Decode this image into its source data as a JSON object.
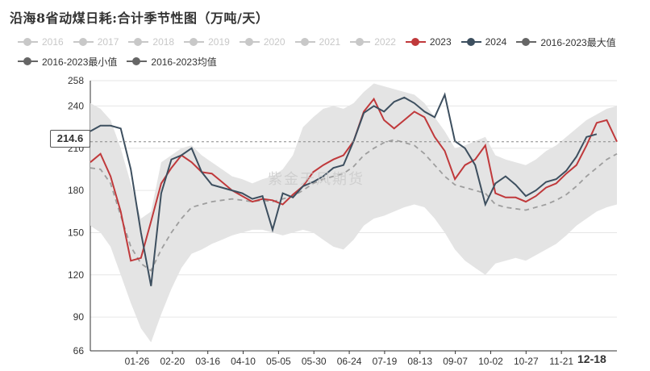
{
  "title": "沿海8省动煤日耗:合计季节性图（万吨/天）",
  "watermark": "紫金天风期货",
  "tooltip_value": "214.6",
  "hover_x_label": "12-18",
  "legend": [
    {
      "label": "2016",
      "active": false,
      "color": "#c8c8c8"
    },
    {
      "label": "2017",
      "active": false,
      "color": "#c8c8c8"
    },
    {
      "label": "2018",
      "active": false,
      "color": "#c8c8c8"
    },
    {
      "label": "2019",
      "active": false,
      "color": "#c8c8c8"
    },
    {
      "label": "2020",
      "active": false,
      "color": "#c8c8c8"
    },
    {
      "label": "2021",
      "active": false,
      "color": "#c8c8c8"
    },
    {
      "label": "2022",
      "active": false,
      "color": "#c8c8c8"
    },
    {
      "label": "2023",
      "active": true,
      "color": "#c0393b"
    },
    {
      "label": "2024",
      "active": true,
      "color": "#3d4f5f"
    },
    {
      "label": "2016-2023最大值",
      "active": true,
      "color": "#666666"
    },
    {
      "label": "2016-2023最小值",
      "active": true,
      "color": "#666666"
    },
    {
      "label": "2016-2023均值",
      "active": true,
      "color": "#666666"
    }
  ],
  "chart_data": {
    "type": "line",
    "title": "沿海8省动煤日耗:合计季节性图（万吨/天）",
    "x_ticks": [
      "01-26",
      "02-20",
      "03-16",
      "04-10",
      "05-05",
      "05-30",
      "06-24",
      "07-19",
      "08-13",
      "09-07",
      "10-02",
      "10-27",
      "11-21",
      "12-18"
    ],
    "y_ticks": [
      66,
      90,
      120,
      150,
      180,
      210,
      240,
      258
    ],
    "ylim": [
      66,
      258
    ],
    "grid": "horizontal",
    "x": [
      "01-01",
      "01-08",
      "01-15",
      "01-22",
      "01-29",
      "02-05",
      "02-12",
      "02-19",
      "02-26",
      "03-05",
      "03-12",
      "03-19",
      "03-26",
      "04-02",
      "04-09",
      "04-16",
      "04-23",
      "04-30",
      "05-07",
      "05-14",
      "05-21",
      "05-28",
      "06-04",
      "06-11",
      "06-18",
      "06-25",
      "07-02",
      "07-09",
      "07-16",
      "07-23",
      "07-30",
      "08-06",
      "08-13",
      "08-20",
      "08-27",
      "09-03",
      "09-10",
      "09-17",
      "09-24",
      "10-01",
      "10-08",
      "10-15",
      "10-22",
      "10-29",
      "11-05",
      "11-12",
      "11-19",
      "11-26",
      "12-03",
      "12-10",
      "12-17",
      "12-24",
      "12-31"
    ],
    "series": [
      {
        "name": "2023",
        "color": "#c0393b",
        "values": [
          200,
          206,
          190,
          165,
          130,
          132,
          158,
          185,
          196,
          205,
          200,
          193,
          192,
          186,
          180,
          176,
          172,
          174,
          173,
          170,
          177,
          183,
          193,
          198,
          202,
          205,
          215,
          236,
          245,
          230,
          224,
          230,
          236,
          232,
          218,
          208,
          188,
          198,
          202,
          212,
          178,
          175,
          175,
          172,
          176,
          182,
          185,
          192,
          198,
          212,
          228,
          230,
          214.6
        ]
      },
      {
        "name": "2024",
        "color": "#3d4f5f",
        "values": [
          222,
          226,
          226,
          224,
          195,
          150,
          112,
          178,
          202,
          205,
          210,
          193,
          184,
          182,
          180,
          178,
          174,
          176,
          152,
          178,
          175,
          183,
          186,
          190,
          196,
          198,
          215,
          235,
          240,
          236,
          243,
          246,
          242,
          236,
          232,
          248,
          215,
          210,
          198,
          170,
          185,
          190,
          184,
          176,
          180,
          186,
          188,
          194,
          204,
          218,
          220,
          null,
          null
        ]
      },
      {
        "name": "2016-2023最大值",
        "color": "#666666",
        "values": [
          242,
          238,
          230,
          210,
          185,
          160,
          165,
          200,
          205,
          210,
          212,
          205,
          200,
          195,
          190,
          188,
          185,
          188,
          190,
          195,
          205,
          225,
          232,
          238,
          240,
          238,
          242,
          250,
          256,
          254,
          252,
          250,
          248,
          242,
          232,
          222,
          210,
          212,
          215,
          218,
          205,
          202,
          200,
          198,
          202,
          208,
          212,
          218,
          224,
          230,
          234,
          238,
          240
        ]
      },
      {
        "name": "2016-2023最小值",
        "color": "#666666",
        "values": [
          155,
          150,
          140,
          120,
          100,
          82,
          72,
          92,
          110,
          125,
          135,
          138,
          142,
          145,
          148,
          150,
          152,
          152,
          150,
          148,
          150,
          152,
          150,
          145,
          140,
          138,
          145,
          155,
          160,
          162,
          165,
          168,
          170,
          168,
          160,
          150,
          138,
          130,
          125,
          120,
          128,
          130,
          132,
          130,
          134,
          138,
          142,
          148,
          155,
          160,
          165,
          168,
          170
        ]
      },
      {
        "name": "2016-2023均值",
        "color": "#9e9e9e",
        "dashed": true,
        "values": [
          196,
          195,
          185,
          162,
          140,
          128,
          123,
          138,
          150,
          160,
          168,
          170,
          172,
          173,
          174,
          173,
          172,
          173,
          172,
          174,
          176,
          180,
          185,
          188,
          190,
          192,
          197,
          205,
          210,
          214,
          216,
          214,
          212,
          206,
          198,
          190,
          184,
          182,
          180,
          178,
          170,
          168,
          167,
          166,
          168,
          170,
          173,
          177,
          183,
          190,
          196,
          202,
          206
        ]
      }
    ]
  }
}
